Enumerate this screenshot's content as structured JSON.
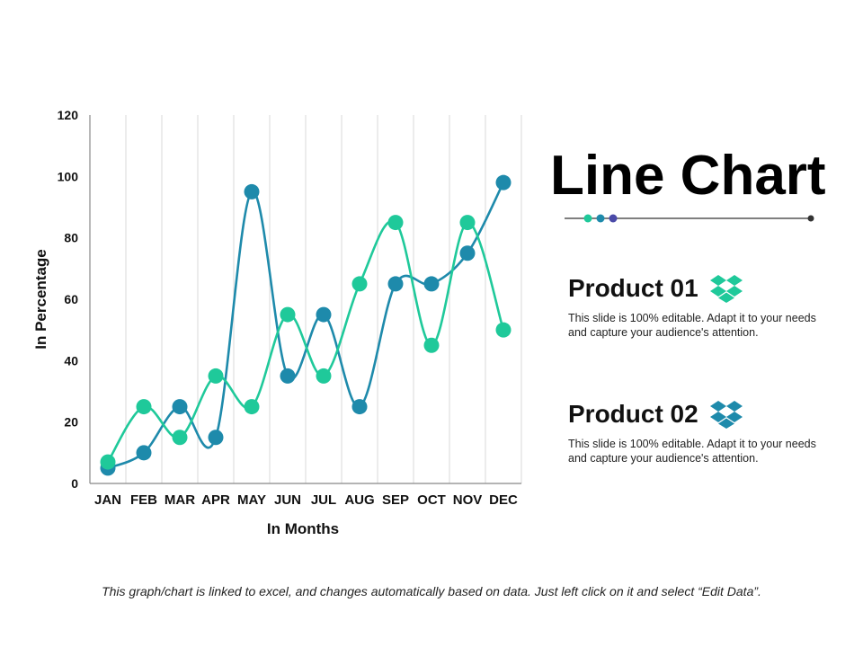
{
  "chart_data": {
    "type": "line",
    "categories": [
      "JAN",
      "FEB",
      "MAR",
      "APR",
      "MAY",
      "JUN",
      "JUL",
      "AUG",
      "SEP",
      "OCT",
      "NOV",
      "DEC"
    ],
    "series": [
      {
        "name": "Product 01",
        "color": "#1e8aab",
        "values": [
          5,
          10,
          25,
          15,
          95,
          35,
          55,
          25,
          65,
          65,
          75,
          98
        ]
      },
      {
        "name": "Product 02",
        "color": "#1fc99a",
        "values": [
          7,
          25,
          15,
          35,
          25,
          55,
          35,
          65,
          85,
          45,
          85,
          50
        ]
      }
    ],
    "yticks": [
      0,
      20,
      40,
      60,
      80,
      100,
      120
    ],
    "ylim": [
      0,
      120
    ],
    "xlabel": "In Months",
    "ylabel": "In Percentage",
    "grid": "vertical"
  },
  "slide": {
    "title": "Line Chart",
    "divider_colors": [
      "#1fc99a",
      "#1e8aab",
      "#4a4aa8",
      "#333333"
    ],
    "products": [
      {
        "title": "Product 01",
        "icon": "dropbox-icon",
        "icon_color": "#1fc99a",
        "desc": "This slide is 100% editable. Adapt it to your needs and capture your audience's attention."
      },
      {
        "title": "Product 02",
        "icon": "dropbox-icon",
        "icon_color": "#1e8aab",
        "desc": "This slide is 100% editable. Adapt it to your needs and capture your audience's attention."
      }
    ],
    "footnote": "This graph/chart is linked to excel, and changes automatically based on data. Just left click on it and select “Edit Data”."
  }
}
